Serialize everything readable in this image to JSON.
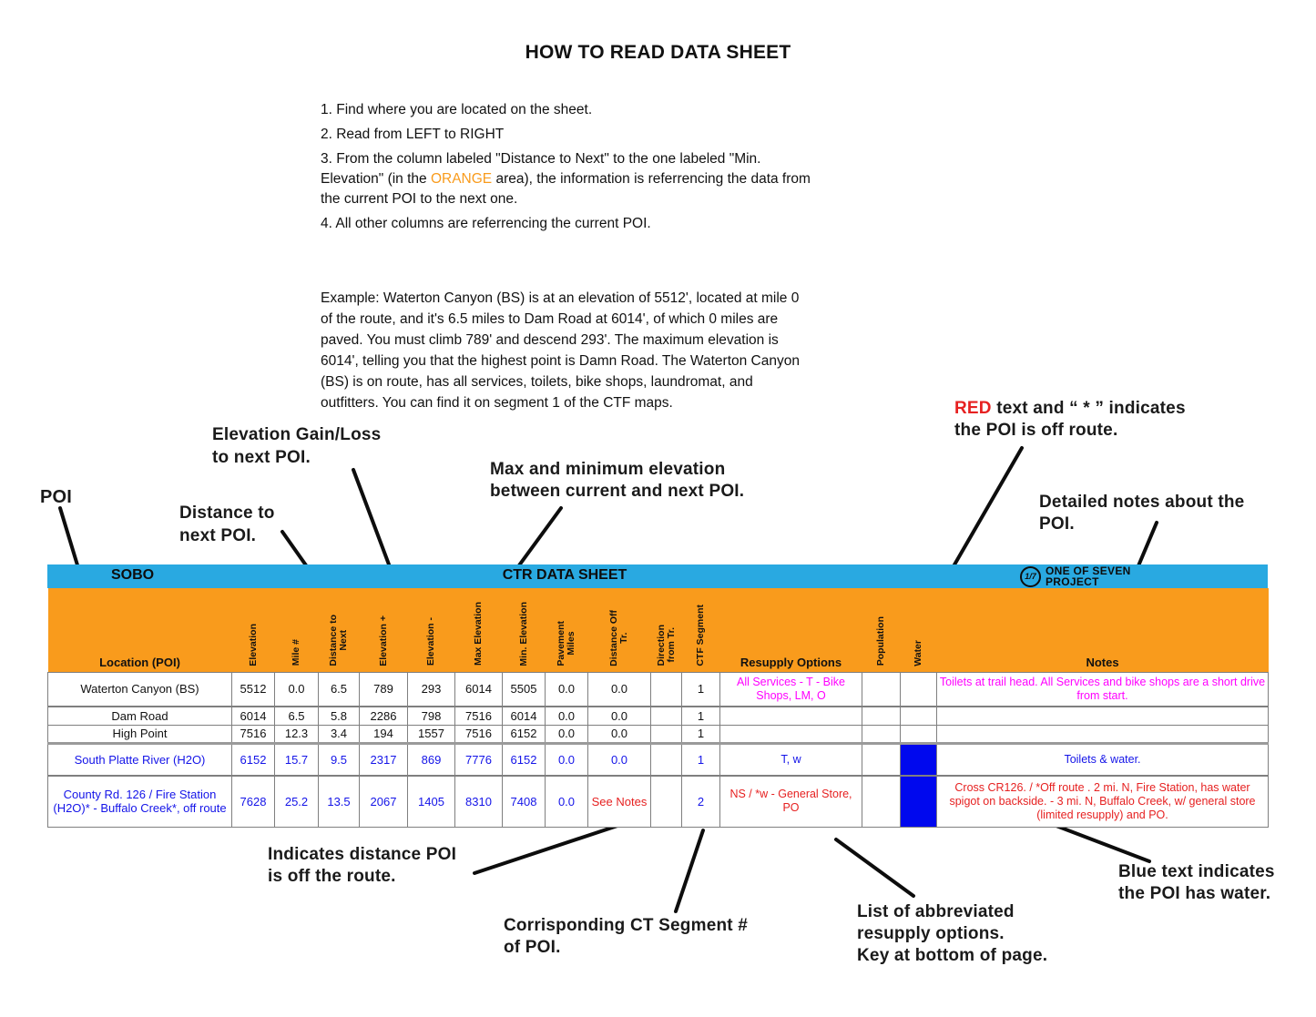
{
  "page": {
    "title": "HOW TO READ DATA SHEET"
  },
  "instructions": {
    "item1": "1. Find where you are located on the sheet.",
    "item2": "2. Read from LEFT to RIGHT",
    "item3_pre": "3. From the column labeled \"Distance to Next\" to the one labeled \"Min.\nElevation\" (in the ",
    "item3_orange": "ORANGE",
    "item3_post": " area), the information is referrencing the data from\nthe current POI to the next one.",
    "item4": "4. All other columns are referrencing the current POI."
  },
  "example": "Example: Waterton Canyon (BS) is at an elevation of 5512', located at mile 0\nof the route, and it's 6.5 miles to Dam Road at 6014', of which 0 miles are\npaved. You must climb 789' and descend 293'. The maximum elevation is\n6014', telling you that the highest point is Damn Road. The Waterton Canyon\n(BS) is on route, has all services, toilets, bike shops, laundromat, and\noutfitters. You can find it on segment 1 of the CTF maps.",
  "annotations": {
    "poi": "POI",
    "distance_next": "Distance to\nnext POI.",
    "elevation_gain": "Elevation Gain/Loss\nto next POI.",
    "max_min": "Max and minimum elevation\nbetween current and next POI.",
    "red_word": "RED",
    "red_rest": " text and “ * ” indicates\nthe POI is off route.",
    "detailed_notes": "Detailed notes about the\nPOI.",
    "indicates_distance": "Indicates distance POI\nis off the route.",
    "ct_segment": "Corrisponding CT Segment #\nof POI.",
    "resupply_list": "List of abbreviated\nresupply options.\nKey at bottom of page.",
    "blue_text": "Blue text indicates\nthe POI has water."
  },
  "table": {
    "direction": "SOBO",
    "sheet_title": "CTR DATA SHEET",
    "logo": {
      "fraction": "1/7",
      "name": "ONE OF SEVEN\nPROJECT"
    },
    "columns": [
      "Location (POI)",
      "Elevation",
      "Mile #",
      "Distance to\nNext",
      "Elevation +",
      "Elevation -",
      "Max Elevation",
      "Min. Elevation",
      "Pavement\nMiles",
      "Distance Off\nTr.",
      "Direction\nfrom Tr.",
      "CTF Segment",
      "Resupply Options",
      "Population",
      "Water",
      "Notes"
    ],
    "rows": [
      {
        "cells": [
          {
            "t": "Waterton Canyon (BS)"
          },
          {
            "t": "5512"
          },
          {
            "t": "0.0"
          },
          {
            "t": "6.5"
          },
          {
            "t": "789"
          },
          {
            "t": "293"
          },
          {
            "t": "6014"
          },
          {
            "t": "5505"
          },
          {
            "t": "0.0"
          },
          {
            "t": "0.0"
          },
          {
            "t": ""
          },
          {
            "t": "1"
          },
          {
            "t": "All Services - T - Bike Shops, LM, O",
            "c": "m"
          },
          {
            "t": ""
          },
          {
            "t": ""
          },
          {
            "t": "Toilets at trail head.  All Services and bike shops are a short drive from start.",
            "c": "m"
          }
        ]
      },
      {
        "cells": [
          {
            "t": "Dam Road"
          },
          {
            "t": "6014"
          },
          {
            "t": "6.5"
          },
          {
            "t": "5.8"
          },
          {
            "t": "2286"
          },
          {
            "t": "798"
          },
          {
            "t": "7516"
          },
          {
            "t": "6014"
          },
          {
            "t": "0.0"
          },
          {
            "t": "0.0"
          },
          {
            "t": ""
          },
          {
            "t": "1"
          },
          {
            "t": ""
          },
          {
            "t": ""
          },
          {
            "t": ""
          },
          {
            "t": ""
          }
        ]
      },
      {
        "cells": [
          {
            "t": "High Point"
          },
          {
            "t": "7516"
          },
          {
            "t": "12.3"
          },
          {
            "t": "3.4"
          },
          {
            "t": "194"
          },
          {
            "t": "1557"
          },
          {
            "t": "7516"
          },
          {
            "t": "6152"
          },
          {
            "t": "0.0"
          },
          {
            "t": "0.0"
          },
          {
            "t": ""
          },
          {
            "t": "1"
          },
          {
            "t": ""
          },
          {
            "t": ""
          },
          {
            "t": ""
          },
          {
            "t": ""
          }
        ]
      },
      {
        "cells": [
          {
            "t": "South Platte River (H2O)",
            "c": "b"
          },
          {
            "t": "6152",
            "c": "b"
          },
          {
            "t": "15.7",
            "c": "b"
          },
          {
            "t": "9.5",
            "c": "b"
          },
          {
            "t": "2317",
            "c": "b"
          },
          {
            "t": "869",
            "c": "b"
          },
          {
            "t": "7776",
            "c": "b"
          },
          {
            "t": "6152",
            "c": "b"
          },
          {
            "t": "0.0",
            "c": "b"
          },
          {
            "t": "0.0",
            "c": "b"
          },
          {
            "t": ""
          },
          {
            "t": "1",
            "c": "b"
          },
          {
            "t": "T, w",
            "c": "b"
          },
          {
            "t": ""
          },
          {
            "t": "",
            "fill": true
          },
          {
            "t": "Toilets & water.",
            "c": "b"
          }
        ]
      },
      {
        "cells": [
          {
            "t": "County Rd. 126 / Fire Station (H2O)* - Buffalo Creek*, off route",
            "c": "b"
          },
          {
            "t": "7628",
            "c": "b"
          },
          {
            "t": "25.2",
            "c": "b"
          },
          {
            "t": "13.5",
            "c": "b"
          },
          {
            "t": "2067",
            "c": "b"
          },
          {
            "t": "1405",
            "c": "b"
          },
          {
            "t": "8310",
            "c": "b"
          },
          {
            "t": "7408",
            "c": "b"
          },
          {
            "t": "0.0",
            "c": "b"
          },
          {
            "t": "See Notes",
            "c": "r"
          },
          {
            "t": ""
          },
          {
            "t": "2",
            "c": "b"
          },
          {
            "t": "NS / *w - General Store, PO",
            "c": "r"
          },
          {
            "t": ""
          },
          {
            "t": "",
            "fill": true
          },
          {
            "t": "Cross CR126. / *Off route . 2 mi. N, Fire Station, has water spigot on backside. -  3 mi. N, Buffalo Creek, w/ general store (limited resupply) and PO.",
            "c": "r"
          }
        ]
      }
    ]
  },
  "colors": {
    "header_blue": "#29A9E1",
    "header_orange": "#F99B1C",
    "off_route_red": "#E62121",
    "water_blue_text": "#1414E8",
    "water_fill": "#0008EE",
    "resupply_magenta": "#FF00FF"
  }
}
